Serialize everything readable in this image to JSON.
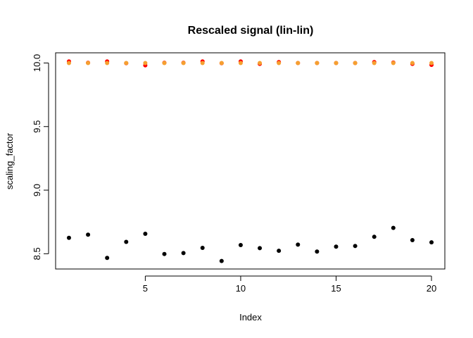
{
  "chart_data": {
    "type": "scatter",
    "title": "Rescaled signal (lin-lin)",
    "xlabel": "Index",
    "ylabel": "scaling_factor",
    "xlim": [
      0.3,
      20.7
    ],
    "ylim": [
      8.38,
      10.08
    ],
    "xticks": [
      5,
      10,
      15,
      20
    ],
    "yticks": [
      8.5,
      9.0,
      9.5,
      10.0
    ],
    "ytick_labels": [
      "8.5",
      "9.0",
      "9.5",
      "10.0"
    ],
    "grid": false,
    "series": [
      {
        "color": "#000000",
        "x": [
          1,
          2,
          3,
          4,
          5,
          6,
          7,
          8,
          9,
          10,
          11,
          12,
          13,
          14,
          15,
          16,
          17,
          18,
          19,
          20
        ],
        "values": [
          8.625,
          8.65,
          8.467,
          8.593,
          8.657,
          8.498,
          8.505,
          8.546,
          8.443,
          8.568,
          8.544,
          8.523,
          8.572,
          8.517,
          8.556,
          8.561,
          8.633,
          8.703,
          8.607,
          8.59
        ]
      },
      {
        "color": "#ff0000",
        "x": [
          1,
          2,
          3,
          4,
          5,
          6,
          7,
          8,
          9,
          10,
          11,
          12,
          13,
          14,
          15,
          16,
          17,
          18,
          19,
          20
        ],
        "values": [
          10.012,
          10.002,
          10.012,
          9.998,
          9.982,
          10.002,
          10.002,
          10.012,
          9.998,
          10.012,
          9.993,
          10.007,
          10.0,
          10.0,
          10.0,
          10.0,
          10.007,
          10.003,
          9.993,
          9.985
        ]
      },
      {
        "color": "#f5a030",
        "x": [
          1,
          2,
          3,
          4,
          5,
          6,
          7,
          8,
          9,
          10,
          11,
          12,
          13,
          14,
          15,
          16,
          17,
          18,
          19,
          20
        ],
        "values": [
          10.0,
          10.0,
          10.0,
          10.0,
          10.0,
          10.0,
          10.0,
          10.0,
          10.0,
          10.0,
          10.0,
          10.0,
          10.0,
          10.0,
          10.0,
          10.0,
          10.0,
          10.0,
          10.0,
          10.0
        ]
      }
    ]
  }
}
